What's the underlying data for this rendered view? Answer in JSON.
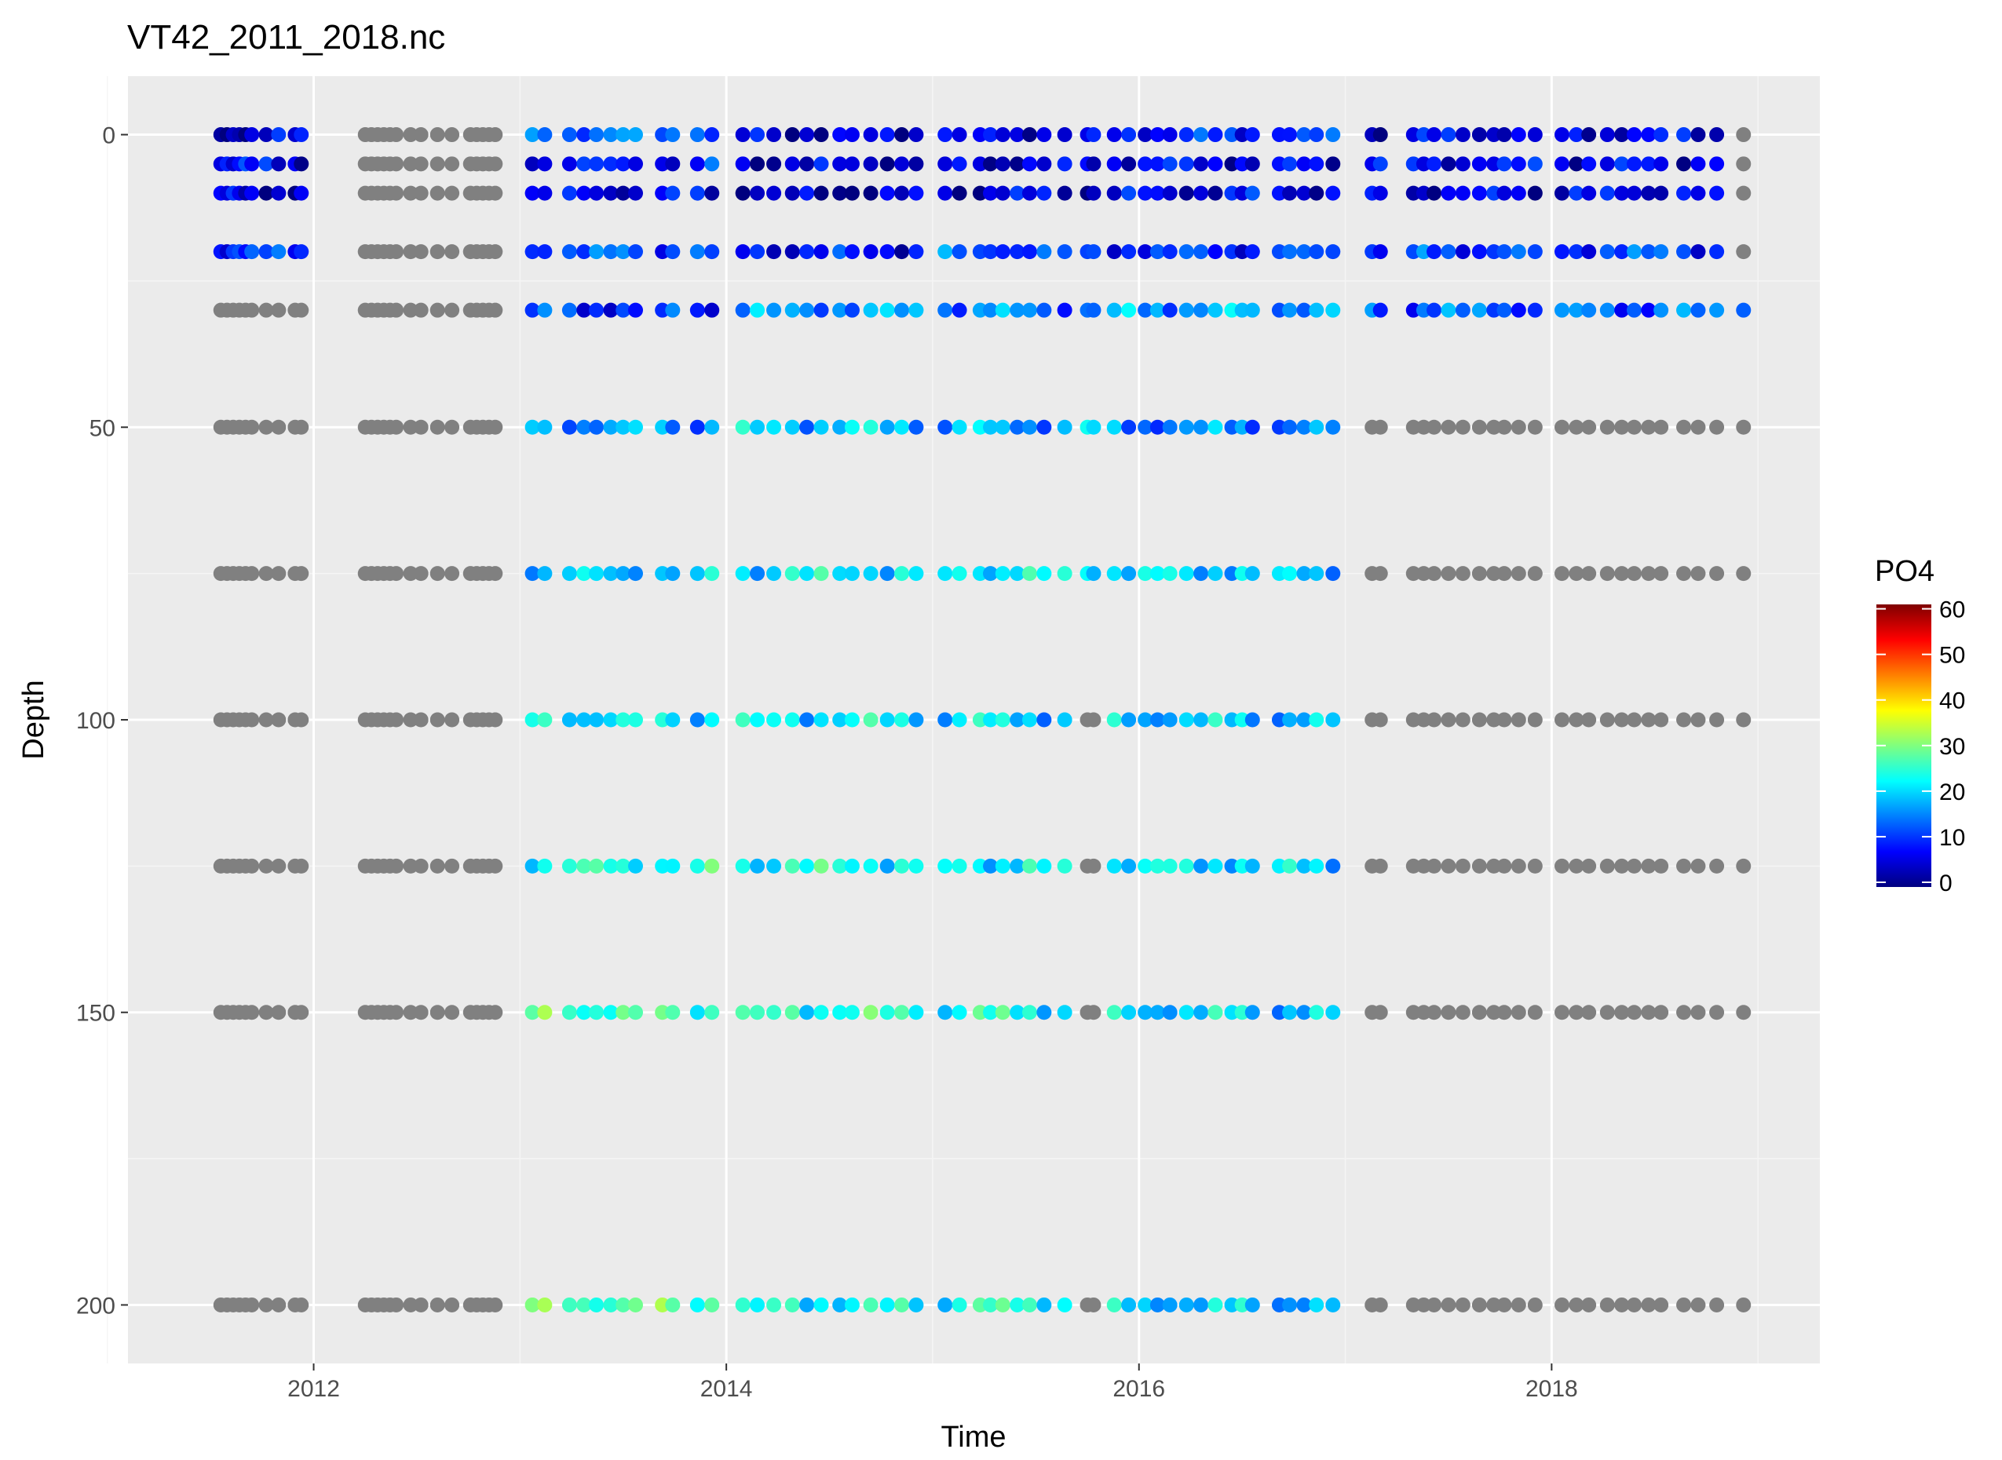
{
  "chart_data": {
    "type": "scatter",
    "title": "VT42_2011_2018.nc",
    "xlabel": "Time",
    "ylabel": "Depth",
    "x_ticks": [
      "2012",
      "2014",
      "2016",
      "2018"
    ],
    "x_tick_values": [
      2012,
      2014,
      2016,
      2018
    ],
    "xlim": [
      2011.1,
      2019.3
    ],
    "y_ticks": [
      "0",
      "50",
      "100",
      "150",
      "200"
    ],
    "y_tick_values": [
      0,
      50,
      100,
      150,
      200
    ],
    "ylim": [
      210,
      -10
    ],
    "y_reversed": true,
    "grid": true,
    "depths": [
      0,
      5,
      10,
      20,
      30,
      50,
      75,
      100,
      125,
      150,
      200
    ],
    "times": [
      2011.55,
      2011.58,
      2011.61,
      2011.64,
      2011.67,
      2011.7,
      2011.77,
      2011.83,
      2011.91,
      2011.94,
      2012.25,
      2012.28,
      2012.31,
      2012.34,
      2012.37,
      2012.4,
      2012.47,
      2012.52,
      2012.6,
      2012.67,
      2012.76,
      2012.79,
      2012.82,
      2012.85,
      2012.88,
      2013.06,
      2013.12,
      2013.24,
      2013.31,
      2013.37,
      2013.44,
      2013.5,
      2013.56,
      2013.69,
      2013.74,
      2013.86,
      2013.93,
      2014.08,
      2014.15,
      2014.23,
      2014.32,
      2014.39,
      2014.46,
      2014.55,
      2014.61,
      2014.7,
      2014.78,
      2014.85,
      2014.92,
      2015.06,
      2015.13,
      2015.23,
      2015.28,
      2015.34,
      2015.41,
      2015.47,
      2015.54,
      2015.64,
      2015.75,
      2015.78,
      2015.88,
      2015.95,
      2016.03,
      2016.09,
      2016.15,
      2016.23,
      2016.3,
      2016.37,
      2016.45,
      2016.5,
      2016.55,
      2016.68,
      2016.73,
      2016.8,
      2016.86,
      2016.94,
      2017.13,
      2017.17,
      2017.33,
      2017.38,
      2017.43,
      2017.5,
      2017.57,
      2017.65,
      2017.72,
      2017.77,
      2017.84,
      2017.92,
      2018.05,
      2018.12,
      2018.18,
      2018.27,
      2018.34,
      2018.4,
      2018.47,
      2018.53,
      2018.64,
      2018.71,
      2018.8,
      2018.93
    ],
    "value_pattern": "PO4 value at each depth row; gray points = missing (NA) values",
    "series_profiles": {
      "2011_2012_early": {
        "0": 5,
        "5": 6,
        "10": 5,
        "20": 10,
        "deep": null
      },
      "2012_late": {
        "all": null
      },
      "2013": {
        "0": 14,
        "5": 8,
        "10": 6,
        "20": 12,
        "30": 10,
        "50": 17,
        "75": 19,
        "100": 22,
        "125": 24,
        "150": 27,
        "200": 28
      },
      "2014": {
        "0": 5,
        "5": 4,
        "10": 3,
        "20": 8,
        "30": 16,
        "50": 19,
        "75": 21,
        "100": 21,
        "125": 23,
        "150": 24,
        "200": 22
      },
      "2015": {
        "0": 6,
        "5": 5,
        "10": 5,
        "20": 12,
        "30": 15,
        "50": 17,
        "75": 22,
        "100": 20,
        "125": 22,
        "150": 23,
        "200": 24
      },
      "2016": {
        "0": 9,
        "5": 7,
        "10": 6,
        "20": 10,
        "30": 17,
        "50": 15,
        "75": 20,
        "100": 19,
        "125": 21,
        "150": 20,
        "200": 19
      },
      "2017_2018": {
        "0": 6,
        "5": 7,
        "10": 6,
        "20": 11,
        "30": 13,
        "deep": null
      }
    },
    "legend": {
      "title": "PO4",
      "labels": [
        "60",
        "50",
        "40",
        "30",
        "20",
        "10",
        "0"
      ],
      "values": [
        60,
        50,
        40,
        30,
        20,
        10,
        0
      ],
      "placement": "right",
      "na_color": "#808080",
      "colors": [
        "#00007F",
        "#0000FF",
        "#007FFF",
        "#00FFFF",
        "#7FFF7F",
        "#FFFF00",
        "#FF7F00",
        "#FF0000",
        "#7F0000"
      ]
    }
  }
}
